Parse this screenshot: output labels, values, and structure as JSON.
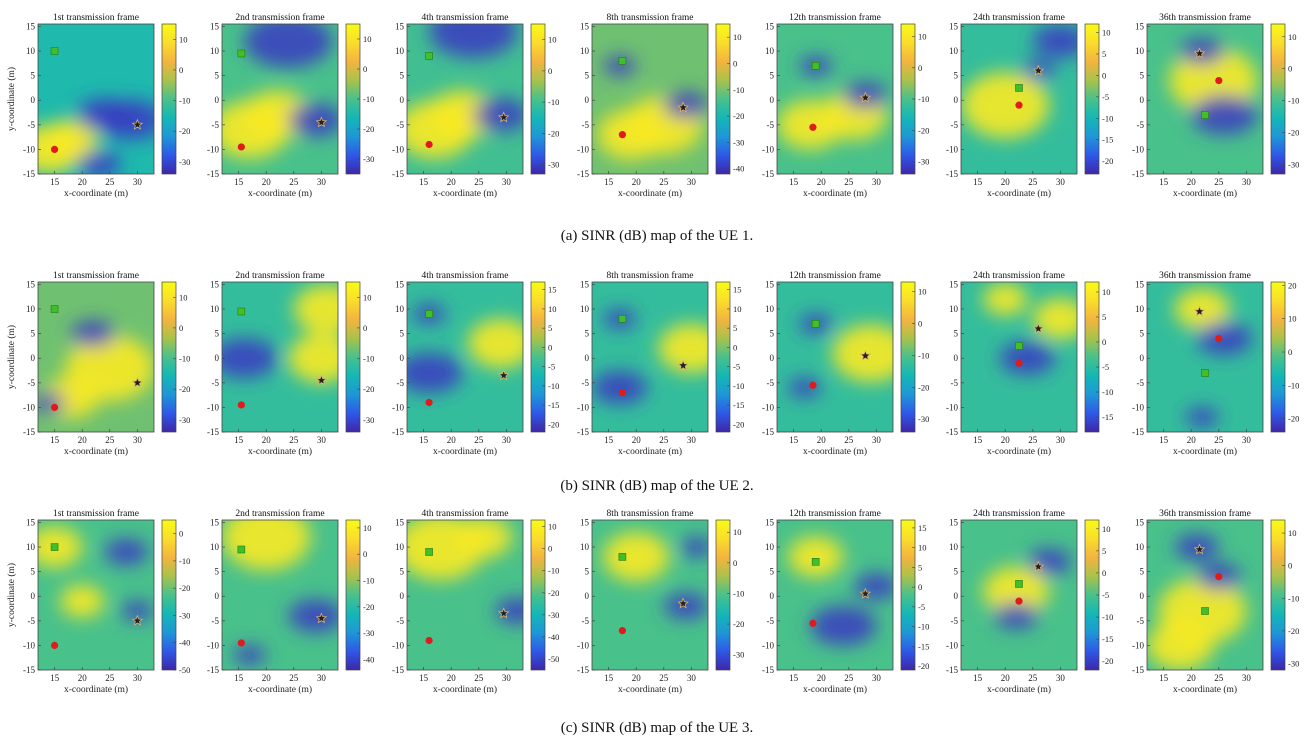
{
  "figure": {
    "xlabel": "x-coordinate (m)",
    "ylabel": "y-coordinate (m)",
    "xticks": [
      15,
      20,
      25,
      30
    ],
    "yticks": [
      15,
      10,
      5,
      0,
      -5,
      -10,
      -15
    ],
    "xlim": [
      12,
      33
    ],
    "ylim": [
      -15,
      15.5
    ],
    "colormap": [
      "#3e26a8",
      "#2e58e8",
      "#1e97d6",
      "#14b7b6",
      "#49c18b",
      "#a9c24b",
      "#f3b43f",
      "#fadd2b",
      "#f9fb15"
    ],
    "frame_titles": [
      "1st transmission frame",
      "2nd transmission frame",
      "4th transmission frame",
      "8th transmission frame",
      "12th transmission frame",
      "24th transmission frame",
      "36th transmission frame"
    ]
  },
  "chart_data": [
    {
      "type": "heatmap",
      "caption": "(a) SINR (dB) map of the UE 1.",
      "panels": [
        {
          "title": "1st transmission frame",
          "colorbar_ticks": [
            10,
            0,
            -10,
            -20,
            -30
          ],
          "clim": [
            -34,
            15
          ],
          "hot": [
            [
              14,
              -10,
              6
            ],
            [
              18,
              -8,
              5
            ]
          ],
          "cold": [
            [
              29,
              -4,
              6
            ],
            [
              24,
              -3,
              5
            ],
            [
              23,
              -13,
              4
            ]
          ],
          "base": 0.4,
          "green": [
            15,
            10
          ],
          "red": [
            15,
            -10
          ],
          "star": [
            30,
            -5
          ]
        },
        {
          "title": "2nd transmission frame",
          "colorbar_ticks": [
            10,
            0,
            -10,
            -20,
            -30
          ],
          "clim": [
            -35,
            15
          ],
          "hot": [
            [
              17,
              -6,
              7
            ],
            [
              22,
              -3,
              6
            ]
          ],
          "cold": [
            [
              29,
              -4,
              5
            ],
            [
              24,
              12,
              8
            ]
          ],
          "base": 0.5,
          "green": [
            15.5,
            9.5
          ],
          "red": [
            15.5,
            -9.5
          ],
          "star": [
            30,
            -4.5
          ]
        },
        {
          "title": "4th transmission frame",
          "colorbar_ticks": [
            10,
            0,
            -10,
            -20,
            -30
          ],
          "clim": [
            -33,
            15
          ],
          "hot": [
            [
              17,
              -6,
              7
            ],
            [
              22,
              -3,
              6
            ]
          ],
          "cold": [
            [
              29,
              -3,
              5
            ],
            [
              24,
              14,
              8
            ]
          ],
          "base": 0.48,
          "green": [
            16,
            9
          ],
          "red": [
            16,
            -9
          ],
          "star": [
            29.5,
            -3.5
          ]
        },
        {
          "title": "8th transmission frame",
          "colorbar_ticks": [
            10,
            0,
            -10,
            -20,
            -30,
            -40
          ],
          "clim": [
            -42,
            15
          ],
          "hot": [
            [
              19,
              -7,
              6
            ],
            [
              25,
              -5,
              7
            ]
          ],
          "cold": [
            [
              29,
              -1,
              4
            ],
            [
              17,
              7,
              3
            ]
          ],
          "base": 0.55,
          "green": [
            17.5,
            8
          ],
          "red": [
            17.5,
            -7
          ],
          "star": [
            28.5,
            -1.5
          ]
        },
        {
          "title": "12th transmission frame",
          "colorbar_ticks": [
            10,
            0,
            -10,
            -20,
            -30
          ],
          "clim": [
            -34,
            14
          ],
          "hot": [
            [
              18,
              -5,
              6
            ],
            [
              26,
              -3,
              6
            ]
          ],
          "cold": [
            [
              19,
              7,
              3
            ],
            [
              28,
              1,
              4
            ]
          ],
          "base": 0.5,
          "green": [
            19,
            7
          ],
          "red": [
            18.5,
            -5.5
          ],
          "star": [
            28,
            0.5
          ]
        },
        {
          "title": "24th transmission frame",
          "colorbar_ticks": [
            10,
            5,
            0,
            -5,
            -10,
            -15,
            -20
          ],
          "clim": [
            -23,
            12
          ],
          "hot": [
            [
              20,
              -1,
              8
            ]
          ],
          "cold": [
            [
              30,
              12,
              5
            ],
            [
              26,
              6,
              3
            ]
          ],
          "base": 0.45,
          "green": [
            22.5,
            2.5
          ],
          "red": [
            22.5,
            -1
          ],
          "star": [
            26,
            6
          ]
        },
        {
          "title": "36th transmission frame",
          "colorbar_ticks": [
            10,
            0,
            -10,
            -20,
            -30
          ],
          "clim": [
            -33,
            14
          ],
          "hot": [
            [
              24,
              4,
              8
            ]
          ],
          "cold": [
            [
              22,
              10,
              4
            ],
            [
              26,
              -3,
              6
            ]
          ],
          "base": 0.5,
          "green": [
            22.5,
            -3
          ],
          "red": [
            25,
            4
          ],
          "star": [
            21.5,
            9.5
          ]
        }
      ]
    },
    {
      "type": "heatmap",
      "caption": "(b) SINR (dB) map of the UE 2.",
      "panels": [
        {
          "title": "1st transmission frame",
          "colorbar_ticks": [
            10,
            0,
            -10,
            -20,
            -30
          ],
          "clim": [
            -34,
            15
          ],
          "hot": [
            [
              25,
              -2,
              8
            ],
            [
              18,
              -8,
              5
            ]
          ],
          "cold": [
            [
              14,
              -9,
              3
            ],
            [
              22,
              5,
              4
            ]
          ],
          "base": 0.55,
          "green": [
            15,
            10
          ],
          "red": [
            15,
            -10
          ],
          "star": [
            30,
            -5
          ]
        },
        {
          "title": "2nd transmission frame",
          "colorbar_ticks": [
            10,
            0,
            -10,
            -20,
            -30
          ],
          "clim": [
            -34,
            15
          ],
          "hot": [
            [
              30,
              0,
              6
            ],
            [
              31,
              10,
              6
            ]
          ],
          "cold": [
            [
              16,
              0,
              6
            ]
          ],
          "base": 0.45,
          "green": [
            15.5,
            9.5
          ],
          "red": [
            15.5,
            -9.5
          ],
          "star": [
            30,
            -4.5
          ]
        },
        {
          "title": "4th transmission frame",
          "colorbar_ticks": [
            15,
            10,
            5,
            0,
            -5,
            -10,
            -15,
            -20
          ],
          "clim": [
            -22,
            17
          ],
          "hot": [
            [
              29,
              3,
              6
            ]
          ],
          "cold": [
            [
              16,
              -3,
              6
            ],
            [
              16,
              9,
              3
            ]
          ],
          "base": 0.45,
          "green": [
            16,
            9
          ],
          "red": [
            16,
            -9
          ],
          "star": [
            29.5,
            -3.5
          ]
        },
        {
          "title": "8th transmission frame",
          "colorbar_ticks": [
            15,
            10,
            5,
            0,
            -5,
            -10,
            -15,
            -20
          ],
          "clim": [
            -22,
            17
          ],
          "hot": [
            [
              30,
              2,
              6
            ]
          ],
          "cold": [
            [
              17,
              -6,
              5
            ],
            [
              17,
              8,
              3
            ]
          ],
          "base": 0.45,
          "green": [
            17.5,
            8
          ],
          "red": [
            17.5,
            -7
          ],
          "star": [
            28.5,
            -1.5
          ]
        },
        {
          "title": "12th transmission frame",
          "colorbar_ticks": [
            10,
            0,
            -10,
            -20,
            -30
          ],
          "clim": [
            -34,
            13
          ],
          "hot": [
            [
              29,
              1,
              7
            ]
          ],
          "cold": [
            [
              19,
              7,
              3
            ],
            [
              17,
              -6,
              3
            ]
          ],
          "base": 0.45,
          "green": [
            19,
            7
          ],
          "red": [
            18.5,
            -5.5
          ],
          "star": [
            28,
            0.5
          ]
        },
        {
          "title": "24th transmission frame",
          "colorbar_ticks": [
            10,
            5,
            0,
            -5,
            -10,
            -15
          ],
          "clim": [
            -18,
            12
          ],
          "hot": [
            [
              30,
              8,
              5
            ],
            [
              20,
              12,
              4
            ]
          ],
          "cold": [
            [
              24,
              0,
              5
            ]
          ],
          "base": 0.45,
          "green": [
            22.5,
            2.5
          ],
          "red": [
            22.5,
            -1
          ],
          "star": [
            26,
            6
          ]
        },
        {
          "title": "36th transmission frame",
          "colorbar_ticks": [
            20,
            10,
            0,
            -10,
            -20
          ],
          "clim": [
            -24,
            21
          ],
          "hot": [
            [
              22,
              10,
              5
            ]
          ],
          "cold": [
            [
              26,
              4,
              5
            ],
            [
              22,
              -12,
              3
            ]
          ],
          "base": 0.45,
          "green": [
            22.5,
            -3
          ],
          "red": [
            25,
            4
          ],
          "star": [
            21.5,
            9.5
          ]
        }
      ]
    },
    {
      "type": "heatmap",
      "caption": "(c) SINR (dB) map of the UE 3.",
      "panels": [
        {
          "title": "1st transmission frame",
          "colorbar_ticks": [
            0,
            -10,
            -20,
            -30,
            -40,
            -50
          ],
          "clim": [
            -50,
            5
          ],
          "hot": [
            [
              15,
              10,
              5
            ],
            [
              20,
              -1,
              4
            ]
          ],
          "cold": [
            [
              30,
              -3,
              3
            ],
            [
              28,
              9,
              4
            ]
          ],
          "base": 0.5,
          "green": [
            15,
            10
          ],
          "red": [
            15,
            -10
          ],
          "star": [
            30,
            -5
          ]
        },
        {
          "title": "2nd transmission frame",
          "colorbar_ticks": [
            10,
            0,
            -10,
            -20,
            -30,
            -40
          ],
          "clim": [
            -44,
            13
          ],
          "hot": [
            [
              20,
              12,
              8
            ]
          ],
          "cold": [
            [
              29,
              -4,
              5
            ],
            [
              17,
              -12,
              3
            ]
          ],
          "base": 0.5,
          "green": [
            15.5,
            9.5
          ],
          "red": [
            15.5,
            -9.5
          ],
          "star": [
            30,
            -4.5
          ]
        },
        {
          "title": "4th transmission frame",
          "colorbar_ticks": [
            10,
            0,
            -10,
            -20,
            -30,
            -40,
            -50
          ],
          "clim": [
            -55,
            13
          ],
          "hot": [
            [
              18,
              10,
              8
            ],
            [
              26,
              12,
              5
            ]
          ],
          "cold": [
            [
              32,
              -3,
              4
            ]
          ],
          "base": 0.5,
          "green": [
            16,
            9
          ],
          "red": [
            16,
            -9
          ],
          "star": [
            29.5,
            -3.5
          ]
        },
        {
          "title": "8th transmission frame",
          "colorbar_ticks": [
            10,
            0,
            -10,
            -20,
            -30
          ],
          "clim": [
            -35,
            14
          ],
          "hot": [
            [
              20,
              8,
              6
            ]
          ],
          "cold": [
            [
              29,
              -2,
              4
            ],
            [
              31,
              10,
              3
            ]
          ],
          "base": 0.5,
          "green": [
            17.5,
            8
          ],
          "red": [
            17.5,
            -7
          ],
          "star": [
            28.5,
            -1.5
          ]
        },
        {
          "title": "12th transmission frame",
          "colorbar_ticks": [
            15,
            10,
            5,
            0,
            -5,
            -10,
            -15,
            -20
          ],
          "clim": [
            -21,
            17
          ],
          "hot": [
            [
              19,
              8,
              5
            ]
          ],
          "cold": [
            [
              24,
              -6,
              6
            ],
            [
              30,
              2,
              4
            ]
          ],
          "base": 0.5,
          "green": [
            19,
            7
          ],
          "red": [
            18.5,
            -5.5
          ],
          "star": [
            28,
            0.5
          ]
        },
        {
          "title": "24th transmission frame",
          "colorbar_ticks": [
            10,
            5,
            0,
            -5,
            -10,
            -15,
            -20
          ],
          "clim": [
            -22,
            12
          ],
          "hot": [
            [
              22,
              1,
              6
            ]
          ],
          "cold": [
            [
              28,
              7,
              4
            ],
            [
              22,
              -4,
              4
            ]
          ],
          "base": 0.5,
          "green": [
            22.5,
            2.5
          ],
          "red": [
            22.5,
            -1
          ],
          "star": [
            26,
            6
          ]
        },
        {
          "title": "36th transmission frame",
          "colorbar_ticks": [
            10,
            0,
            -10,
            -20,
            -30
          ],
          "clim": [
            -32,
            14
          ],
          "hot": [
            [
              22,
              -3,
              8
            ],
            [
              18,
              -10,
              6
            ]
          ],
          "cold": [
            [
              25,
              4,
              4
            ],
            [
              21,
              10,
              4
            ]
          ],
          "base": 0.5,
          "green": [
            22.5,
            -3
          ],
          "red": [
            25,
            4
          ],
          "star": [
            21.5,
            9.5
          ]
        }
      ]
    }
  ]
}
